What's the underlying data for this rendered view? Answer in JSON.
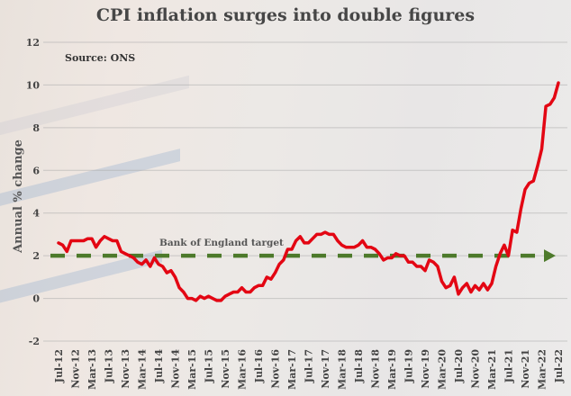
{
  "chart_data": {
    "type": "line",
    "title": "CPI inflation surges into double figures",
    "source": "Source: ONS",
    "ylabel": "Annual % change",
    "xlabel": "",
    "ylim": [
      -2,
      12
    ],
    "yticks": [
      12,
      10,
      8,
      6,
      4,
      2,
      0,
      -2
    ],
    "grid": true,
    "x_start": "Jul-12",
    "x_end": "Jul-22",
    "xtick_labels": [
      "Jul-12",
      "Nov-12",
      "Mar-13",
      "Jul-13",
      "Nov-13",
      "Mar-14",
      "Jul-14",
      "Nov-14",
      "Mar-15",
      "Jul-15",
      "Nov-15",
      "Mar-16",
      "Jul-16",
      "Nov-16",
      "Mar-17",
      "Jul-17",
      "Nov-17",
      "Mar-18",
      "Jul-18",
      "Nov-18",
      "Mar-19",
      "Jul-19",
      "Nov-19",
      "Mar-20",
      "Jul-20",
      "Nov-20",
      "Mar-21",
      "Jul-21",
      "Nov-21",
      "Mar-22",
      "Jul-22"
    ],
    "series": [
      {
        "name": "CPI annual % change",
        "color": "#e30613",
        "frequency": "monthly",
        "values": [
          2.6,
          2.5,
          2.2,
          2.7,
          2.7,
          2.7,
          2.7,
          2.8,
          2.8,
          2.4,
          2.7,
          2.9,
          2.8,
          2.7,
          2.7,
          2.2,
          2.1,
          2.0,
          1.9,
          1.7,
          1.6,
          1.8,
          1.5,
          1.9,
          1.6,
          1.5,
          1.2,
          1.3,
          1.0,
          0.5,
          0.3,
          0.0,
          0.0,
          -0.1,
          0.1,
          0.0,
          0.1,
          0.0,
          -0.1,
          -0.1,
          0.1,
          0.2,
          0.3,
          0.3,
          0.5,
          0.3,
          0.3,
          0.5,
          0.6,
          0.6,
          1.0,
          0.9,
          1.2,
          1.6,
          1.8,
          2.3,
          2.3,
          2.7,
          2.9,
          2.6,
          2.6,
          2.8,
          3.0,
          3.0,
          3.1,
          3.0,
          3.0,
          2.7,
          2.5,
          2.4,
          2.4,
          2.4,
          2.5,
          2.7,
          2.4,
          2.4,
          2.3,
          2.1,
          1.8,
          1.9,
          1.9,
          2.1,
          2.0,
          2.0,
          1.7,
          1.7,
          1.5,
          1.5,
          1.3,
          1.8,
          1.7,
          1.5,
          0.8,
          0.5,
          0.6,
          1.0,
          0.2,
          0.5,
          0.7,
          0.3,
          0.6,
          0.4,
          0.7,
          0.4,
          0.7,
          1.5,
          2.1,
          2.5,
          2.0,
          3.2,
          3.1,
          4.2,
          5.1,
          5.4,
          5.5,
          6.2,
          7.0,
          9.0,
          9.1,
          9.4,
          10.1
        ]
      }
    ],
    "reference_line": {
      "label": "Bank of England target",
      "value": 2,
      "color": "#4d7a2b",
      "style": "dashed-arrow"
    }
  }
}
